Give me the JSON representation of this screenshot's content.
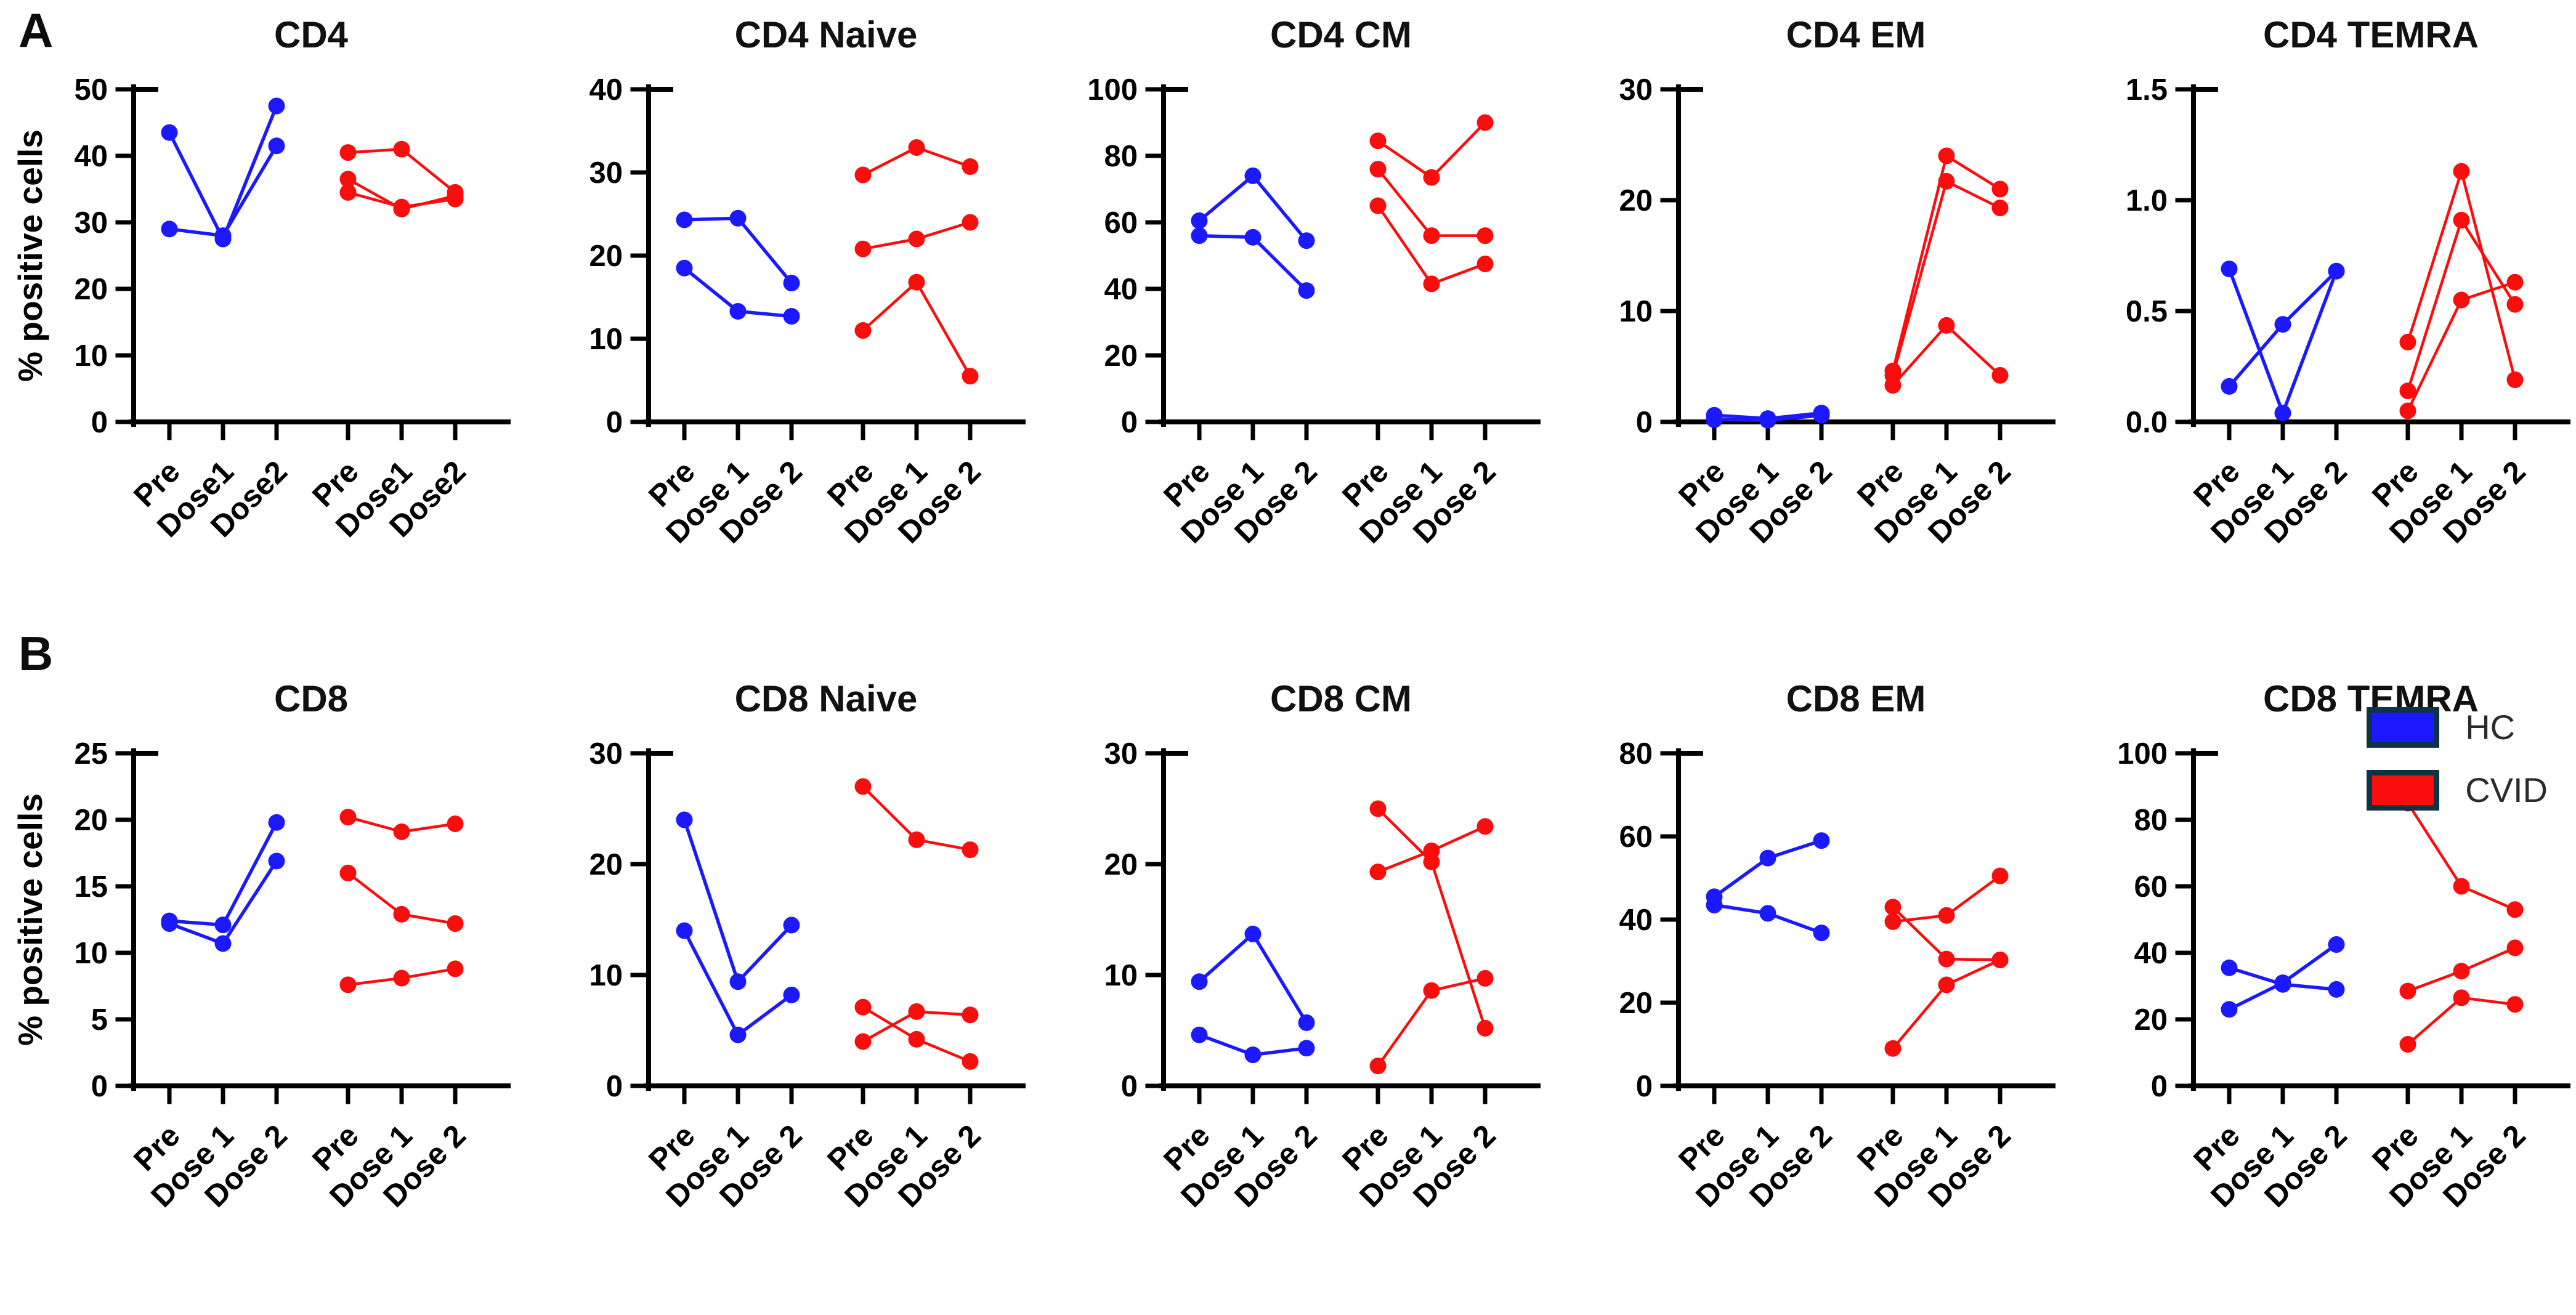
{
  "panels": [
    {
      "label": "A"
    },
    {
      "label": "B"
    }
  ],
  "colors": {
    "hc": "#1b19ff",
    "cvid": "#fc0d0d",
    "axis": "#000000"
  },
  "legend": {
    "items": [
      {
        "label": "HC",
        "color_key": "hc"
      },
      {
        "label": "CVID",
        "color_key": "cvid"
      }
    ]
  },
  "chart_data": [
    {
      "type": "line",
      "title": "CD4",
      "ylabel": "% positive cells",
      "ylim": [
        0,
        50
      ],
      "yticks": [
        0,
        10,
        20,
        30,
        40,
        50
      ],
      "ytick_labels": [
        "0",
        "10",
        "20",
        "30",
        "40",
        "50"
      ],
      "categories": [
        "Pre",
        "Dose1",
        "Dose2",
        "Pre",
        "Dose1",
        "Dose2"
      ],
      "series": [
        {
          "group": "hc",
          "values": [
            43.5,
            27.5,
            47.5
          ]
        },
        {
          "group": "hc",
          "values": [
            29.0,
            28.0,
            41.5
          ]
        },
        {
          "group": "cvid",
          "values": [
            40.5,
            41.0,
            34.5
          ]
        },
        {
          "group": "cvid",
          "values": [
            36.5,
            32.0,
            34.0
          ]
        },
        {
          "group": "cvid",
          "values": [
            34.5,
            32.3,
            33.5
          ]
        }
      ]
    },
    {
      "type": "line",
      "title": "CD4 Naive",
      "ylabel": "",
      "ylim": [
        0,
        40
      ],
      "yticks": [
        0,
        10,
        20,
        30,
        40
      ],
      "ytick_labels": [
        "0",
        "10",
        "20",
        "30",
        "40"
      ],
      "categories": [
        "Pre",
        "Dose 1",
        "Dose 2",
        "Pre",
        "Dose 1",
        "Dose 2"
      ],
      "series": [
        {
          "group": "hc",
          "values": [
            24.3,
            24.5,
            16.7
          ]
        },
        {
          "group": "hc",
          "values": [
            18.5,
            13.3,
            12.7
          ]
        },
        {
          "group": "cvid",
          "values": [
            29.7,
            33.0,
            30.7
          ]
        },
        {
          "group": "cvid",
          "values": [
            20.8,
            22.0,
            24.0
          ]
        },
        {
          "group": "cvid",
          "values": [
            11.0,
            16.8,
            5.5
          ]
        }
      ]
    },
    {
      "type": "line",
      "title": "CD4 CM",
      "ylabel": "",
      "ylim": [
        0,
        100
      ],
      "yticks": [
        0,
        20,
        40,
        60,
        80,
        100
      ],
      "ytick_labels": [
        "0",
        "20",
        "40",
        "60",
        "80",
        "100"
      ],
      "categories": [
        "Pre",
        "Dose 1",
        "Dose 2",
        "Pre",
        "Dose 1",
        "Dose 2"
      ],
      "series": [
        {
          "group": "hc",
          "values": [
            60.5,
            74.0,
            54.5
          ]
        },
        {
          "group": "hc",
          "values": [
            56.0,
            55.5,
            39.5
          ]
        },
        {
          "group": "cvid",
          "values": [
            84.5,
            73.5,
            90.0
          ]
        },
        {
          "group": "cvid",
          "values": [
            76.0,
            56.0,
            56.0
          ]
        },
        {
          "group": "cvid",
          "values": [
            65.0,
            41.5,
            47.5
          ]
        }
      ]
    },
    {
      "type": "line",
      "title": "CD4 EM",
      "ylabel": "",
      "ylim": [
        0,
        30
      ],
      "yticks": [
        0,
        10,
        20,
        30
      ],
      "ytick_labels": [
        "0",
        "10",
        "20",
        "30"
      ],
      "categories": [
        "Pre",
        "Dose 1",
        "Dose 2",
        "Pre",
        "Dose 1",
        "Dose 2"
      ],
      "series": [
        {
          "group": "hc",
          "values": [
            0.6,
            0.3,
            0.8
          ]
        },
        {
          "group": "hc",
          "values": [
            0.2,
            0.15,
            0.6
          ]
        },
        {
          "group": "cvid",
          "values": [
            4.6,
            24.0,
            21.0
          ]
        },
        {
          "group": "cvid",
          "values": [
            4.2,
            21.7,
            19.3
          ]
        },
        {
          "group": "cvid",
          "values": [
            3.3,
            8.7,
            4.2
          ]
        }
      ]
    },
    {
      "type": "line",
      "title": "CD4 TEMRA",
      "ylabel": "",
      "ylim": [
        0,
        1.5
      ],
      "yticks": [
        0,
        0.5,
        1.0,
        1.5
      ],
      "ytick_labels": [
        "0.0",
        "0.5",
        "1.0",
        "1.5"
      ],
      "categories": [
        "Pre",
        "Dose 1",
        "Dose 2",
        "Pre",
        "Dose 1",
        "Dose 2"
      ],
      "series": [
        {
          "group": "hc",
          "values": [
            0.69,
            0.04,
            0.68
          ]
        },
        {
          "group": "hc",
          "values": [
            0.16,
            0.44,
            0.68
          ]
        },
        {
          "group": "cvid",
          "values": [
            0.36,
            1.13,
            0.19
          ]
        },
        {
          "group": "cvid",
          "values": [
            0.14,
            0.91,
            0.53
          ]
        },
        {
          "group": "cvid",
          "values": [
            0.05,
            0.55,
            0.63
          ]
        }
      ]
    },
    {
      "type": "line",
      "title": "CD8",
      "ylabel": "% positive cells",
      "ylim": [
        0,
        25
      ],
      "yticks": [
        0,
        5,
        10,
        15,
        20,
        25
      ],
      "ytick_labels": [
        "0",
        "5",
        "10",
        "15",
        "20",
        "25"
      ],
      "categories": [
        "Pre",
        "Dose 1",
        "Dose 2",
        "Pre",
        "Dose 1",
        "Dose 2"
      ],
      "series": [
        {
          "group": "hc",
          "values": [
            12.4,
            12.1,
            19.8
          ]
        },
        {
          "group": "hc",
          "values": [
            12.2,
            10.7,
            16.9
          ]
        },
        {
          "group": "cvid",
          "values": [
            20.2,
            19.1,
            19.7
          ]
        },
        {
          "group": "cvid",
          "values": [
            16.0,
            12.9,
            12.2
          ]
        },
        {
          "group": "cvid",
          "values": [
            7.6,
            8.1,
            8.8
          ]
        }
      ]
    },
    {
      "type": "line",
      "title": "CD8 Naive",
      "ylabel": "",
      "ylim": [
        0,
        30
      ],
      "yticks": [
        0,
        10,
        20,
        30
      ],
      "ytick_labels": [
        "0",
        "10",
        "20",
        "30"
      ],
      "categories": [
        "Pre",
        "Dose 1",
        "Dose 2",
        "Pre",
        "Dose 1",
        "Dose 2"
      ],
      "series": [
        {
          "group": "hc",
          "values": [
            24.0,
            9.4,
            14.5
          ]
        },
        {
          "group": "hc",
          "values": [
            14.0,
            4.6,
            8.2
          ]
        },
        {
          "group": "cvid",
          "values": [
            27.0,
            22.2,
            21.3
          ]
        },
        {
          "group": "cvid",
          "values": [
            7.1,
            4.2,
            2.2
          ]
        },
        {
          "group": "cvid",
          "values": [
            4.0,
            6.7,
            6.4
          ]
        }
      ]
    },
    {
      "type": "line",
      "title": "CD8 CM",
      "ylabel": "",
      "ylim": [
        0,
        30
      ],
      "yticks": [
        0,
        10,
        20,
        30
      ],
      "ytick_labels": [
        "0",
        "10",
        "20",
        "30"
      ],
      "categories": [
        "Pre",
        "Dose 1",
        "Dose 2",
        "Pre",
        "Dose 1",
        "Dose 2"
      ],
      "series": [
        {
          "group": "hc",
          "values": [
            9.4,
            13.7,
            5.7
          ]
        },
        {
          "group": "hc",
          "values": [
            4.6,
            2.8,
            3.4
          ]
        },
        {
          "group": "cvid",
          "values": [
            25.0,
            20.2,
            5.2
          ]
        },
        {
          "group": "cvid",
          "values": [
            19.3,
            21.2,
            23.4
          ]
        },
        {
          "group": "cvid",
          "values": [
            1.8,
            8.6,
            9.7
          ]
        }
      ]
    },
    {
      "type": "line",
      "title": "CD8 EM",
      "ylabel": "",
      "ylim": [
        0,
        80
      ],
      "yticks": [
        0,
        20,
        40,
        60,
        80
      ],
      "ytick_labels": [
        "0",
        "20",
        "40",
        "60",
        "80"
      ],
      "categories": [
        "Pre",
        "Dose 1",
        "Dose 2",
        "Pre",
        "Dose 1",
        "Dose 2"
      ],
      "series": [
        {
          "group": "hc",
          "values": [
            45.5,
            54.8,
            59.0
          ]
        },
        {
          "group": "hc",
          "values": [
            43.5,
            41.5,
            36.8
          ]
        },
        {
          "group": "cvid",
          "values": [
            39.5,
            41.0,
            50.5
          ]
        },
        {
          "group": "cvid",
          "values": [
            43.0,
            30.5,
            30.3
          ]
        },
        {
          "group": "cvid",
          "values": [
            9.0,
            24.3,
            30.3
          ]
        }
      ]
    },
    {
      "type": "line",
      "title": "CD8 TEMRA",
      "ylabel": "",
      "ylim": [
        0,
        100
      ],
      "yticks": [
        0,
        20,
        40,
        60,
        80,
        100
      ],
      "ytick_labels": [
        "0",
        "20",
        "40",
        "60",
        "80",
        "100"
      ],
      "categories": [
        "Pre",
        "Dose 1",
        "Dose 2",
        "Pre",
        "Dose 1",
        "Dose 2"
      ],
      "series": [
        {
          "group": "hc",
          "values": [
            35.5,
            30.5,
            29.0
          ]
        },
        {
          "group": "hc",
          "values": [
            23.0,
            31.0,
            42.5
          ]
        },
        {
          "group": "cvid",
          "values": [
            85.0,
            60.0,
            53.0
          ]
        },
        {
          "group": "cvid",
          "values": [
            28.5,
            34.5,
            41.5
          ]
        },
        {
          "group": "cvid",
          "values": [
            12.5,
            26.5,
            24.5
          ]
        }
      ]
    }
  ]
}
